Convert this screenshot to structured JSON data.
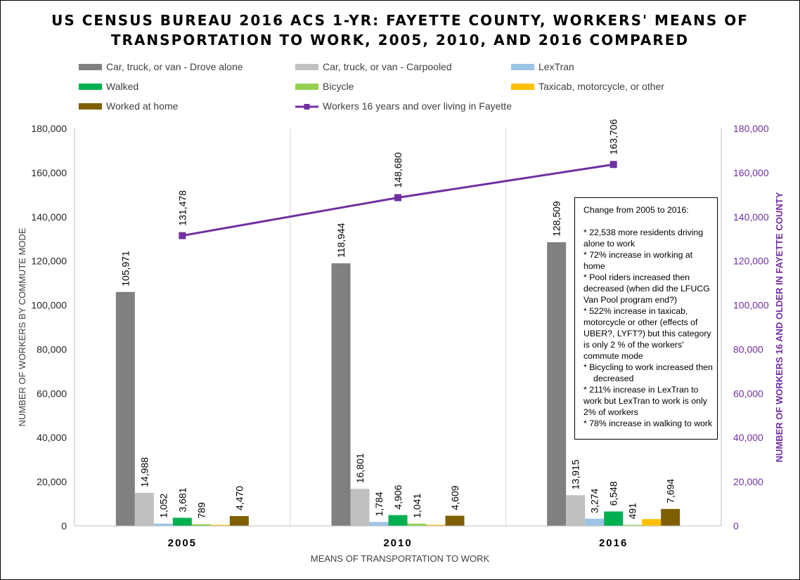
{
  "chart_data": {
    "type": "bar",
    "title_line1": "US CENSUS BUREAU 2016 ACS 1-YR:  FAYETTE COUNTY, WORKERS' MEANS OF",
    "title_line2": "TRANSPORTATION TO WORK, 2005, 2010, AND 2016 COMPARED",
    "xlabel": "MEANS OF TRANSPORTATION TO WORK",
    "ylabel": "NUMBER OF WORKERS BY COMMUTE MODE",
    "y2label": "NUMBER OF WORKERS 16 AND OLDER IN FAYETTE COUNTY",
    "categories": [
      "2005",
      "2010",
      "2016"
    ],
    "ylim": [
      0,
      180000
    ],
    "y2lim": [
      0,
      180000
    ],
    "yticks": [
      "0",
      "20,000",
      "40,000",
      "60,000",
      "80,000",
      "100,000",
      "120,000",
      "140,000",
      "160,000",
      "180,000"
    ],
    "grid": "vertical category separators",
    "legend_position": "top",
    "series": [
      {
        "name": "Car, truck, or van - Drove alone",
        "color": "#808080",
        "values": [
          105971,
          118944,
          128509
        ],
        "labels": [
          "105,971",
          "118,944",
          "128,509"
        ]
      },
      {
        "name": "Car, truck, or van - Carpooled",
        "color": "#c0c0c0",
        "values": [
          14988,
          16801,
          13915
        ],
        "labels": [
          "14,988",
          "16,801",
          "13,915"
        ]
      },
      {
        "name": "LexTran",
        "color": "#9dc3e6",
        "values": [
          1052,
          1784,
          3274
        ],
        "labels": [
          "1,052",
          "1,784",
          "3,274"
        ]
      },
      {
        "name": "Walked",
        "color": "#00b050",
        "values": [
          3681,
          4906,
          6548
        ],
        "labels": [
          "3,681",
          "4,906",
          "6,548"
        ]
      },
      {
        "name": "Bicycle",
        "color": "#92d050",
        "values": [
          789,
          1041,
          491
        ],
        "labels": [
          "789",
          "1,041",
          "491"
        ]
      },
      {
        "name": "Taxicab, motorcycle, or other",
        "color": "#ffc000",
        "values": [
          500,
          500,
          3111
        ],
        "labels": [
          "",
          "",
          ""
        ]
      },
      {
        "name": "Worked at home",
        "color": "#7f6000",
        "values": [
          4470,
          4609,
          7694
        ],
        "labels": [
          "4,470",
          "4,609",
          "7,694"
        ]
      }
    ],
    "line_series": {
      "name": "Workers 16 years and over living in Fayette",
      "color": "#7030a0",
      "axis": "right",
      "values": [
        131478,
        148680,
        163706
      ],
      "labels": [
        "131,478",
        "148,680",
        "163,706"
      ]
    }
  },
  "note": {
    "title": "Change from 2005 to 2016:",
    "items": [
      "* 22,538 more residents driving alone to work",
      "* 72% increase in working at home",
      "* Pool riders increased then decreased (when did the LFUCG Van Pool program end?)",
      "* 522% increase in taxicab, motorcycle or other (effects of UBER?, LYFT?) but this category is only 2 % of the workers' commute mode",
      "* Bicycling to work increased then",
      "decreased",
      "* 211% increase in LexTran to work but LexTran to work is only 2% of workers",
      "* 78% increase in walking to work"
    ]
  }
}
